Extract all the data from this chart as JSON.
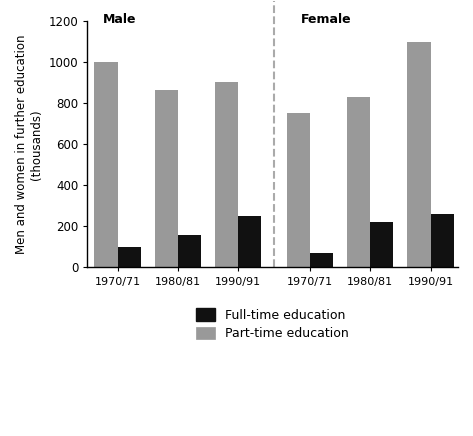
{
  "ylabel_line1": "Men and women in further education",
  "ylabel_line2": "(thousands)",
  "ylim": [
    0,
    1200
  ],
  "yticks": [
    0,
    200,
    400,
    600,
    800,
    1000,
    1200
  ],
  "categories": [
    "1970/71",
    "1980/81",
    "1990/91"
  ],
  "male_fulltime": [
    100,
    160,
    250
  ],
  "male_parttime": [
    1000,
    865,
    905
  ],
  "female_fulltime": [
    70,
    220,
    260
  ],
  "female_parttime": [
    750,
    830,
    1100
  ],
  "fulltime_color": "#111111",
  "parttime_color": "#999999",
  "bar_width": 0.42,
  "male_label": "Male",
  "female_label": "Female",
  "legend_fulltime": "Full-time education",
  "legend_parttime": "Part-time education",
  "background_color": "#ffffff",
  "divider_color": "#aaaaaa"
}
